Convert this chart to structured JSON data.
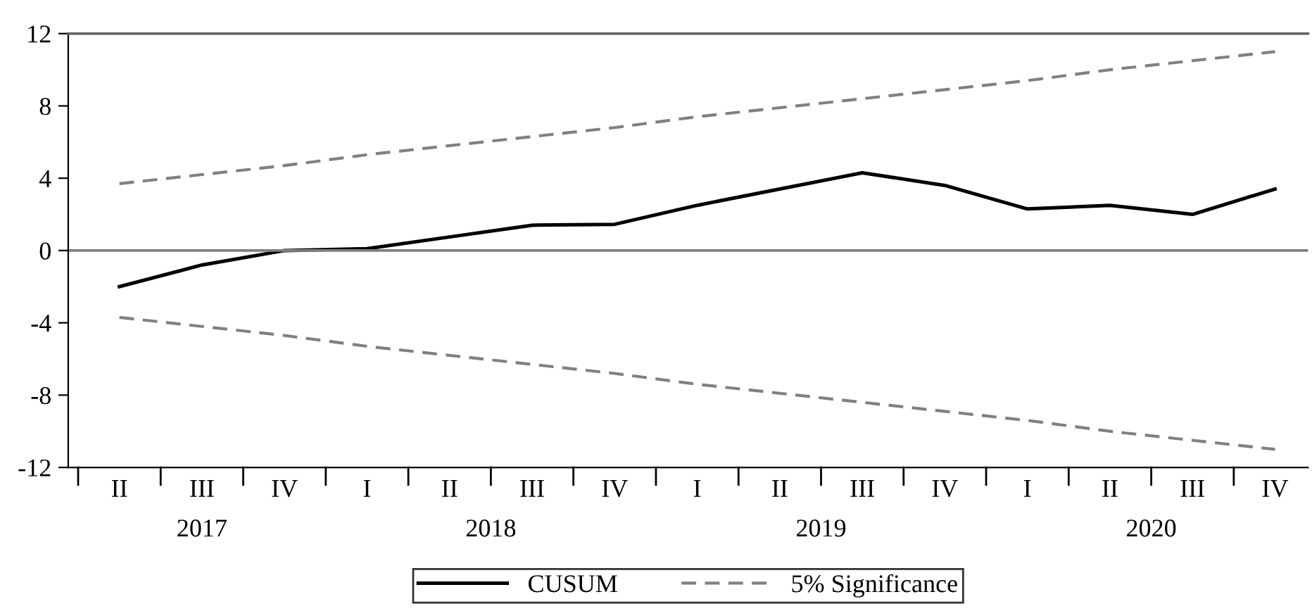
{
  "chart_data": {
    "type": "line",
    "categories": [
      "II",
      "III",
      "IV",
      "I",
      "II",
      "III",
      "IV",
      "I",
      "II",
      "III",
      "IV",
      "I",
      "II",
      "III",
      "IV"
    ],
    "series": [
      {
        "name": "CUSUM",
        "color": "#000000",
        "line_style": "solid",
        "values": [
          -2.0,
          -0.8,
          0.0,
          0.1,
          0.75,
          1.4,
          1.45,
          2.5,
          3.4,
          4.3,
          3.6,
          2.3,
          2.5,
          2.0,
          3.4
        ]
      },
      {
        "name": "5% Significance",
        "color": "#808080",
        "line_style": "dashed",
        "values": [
          3.7,
          4.2,
          4.7,
          5.3,
          5.8,
          6.3,
          6.8,
          7.4,
          7.9,
          8.4,
          8.9,
          9.4,
          10.0,
          10.5,
          11.0
        ]
      },
      {
        "color": "#808080",
        "line_style": "dashed",
        "values": [
          -3.7,
          -4.2,
          -4.7,
          -5.3,
          -5.8,
          -6.3,
          -6.8,
          -7.4,
          -7.9,
          -8.4,
          -8.9,
          -9.4,
          -10.0,
          -10.5,
          -11.0
        ]
      }
    ],
    "annotations": [
      "2017",
      "2018",
      "2019",
      "2020"
    ],
    "ylim": [
      -12,
      12
    ],
    "yticks": [
      -12,
      -8,
      -4,
      0,
      4,
      8,
      12
    ],
    "ref_lines": [
      {
        "axis": "y",
        "value": 0,
        "color": "#808080"
      }
    ],
    "grid": false,
    "legend": "bottom",
    "marker": "none"
  }
}
